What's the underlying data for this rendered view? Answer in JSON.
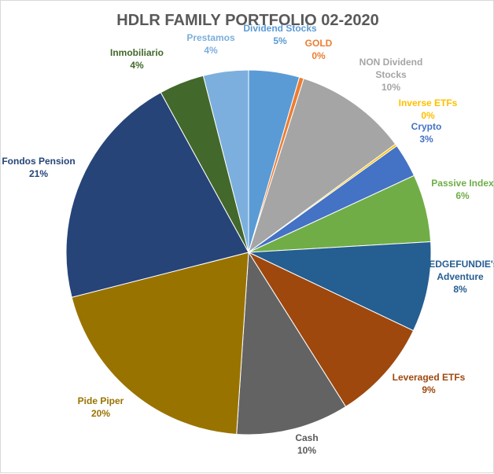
{
  "chart_data": {
    "type": "pie",
    "title": "HDLR FAMILY PORTFOLIO 02-2020",
    "slices": [
      {
        "name": "Dividend Stocks",
        "value": 4.5,
        "label_lines": [
          "Dividend Stocks",
          "5%"
        ],
        "color": "#5b9bd5",
        "label_color": "#5b9bd5"
      },
      {
        "name": "GOLD",
        "value": 0.4,
        "label_lines": [
          "GOLD",
          "0%"
        ],
        "color": "#ed7d31",
        "label_color": "#ed7d31"
      },
      {
        "name": "NON Dividend Stocks",
        "value": 10.0,
        "label_lines": [
          "NON Dividend",
          "Stocks",
          "10%"
        ],
        "color": "#a5a5a5",
        "label_color": "#a5a5a5"
      },
      {
        "name": "Inverse ETFs",
        "value": 0.2,
        "label_lines": [
          "Inverse ETFs",
          "0%"
        ],
        "color": "#ffc000",
        "label_color": "#ffc000"
      },
      {
        "name": "Crypto",
        "value": 3.0,
        "label_lines": [
          "Crypto",
          "3%"
        ],
        "color": "#4472c4",
        "label_color": "#4472c4"
      },
      {
        "name": "Passive Index",
        "value": 6.0,
        "label_lines": [
          "Passive Index",
          "6%"
        ],
        "color": "#70ad47",
        "label_color": "#70ad47"
      },
      {
        "name": "HEDGEFUNDIE's Adventure",
        "value": 8.0,
        "label_lines": [
          "HEDGEFUNDIE's",
          "Adventure",
          "8%"
        ],
        "color": "#255e91",
        "label_color": "#255e91"
      },
      {
        "name": "Leveraged ETFs",
        "value": 9.0,
        "label_lines": [
          "Leveraged ETFs",
          "9%"
        ],
        "color": "#9e480e",
        "label_color": "#9e480e"
      },
      {
        "name": "Cash",
        "value": 10.0,
        "label_lines": [
          "Cash",
          "10%"
        ],
        "color": "#636363",
        "label_color": "#595959"
      },
      {
        "name": "Pide Piper",
        "value": 20.0,
        "label_lines": [
          "Pide Piper",
          "20%"
        ],
        "color": "#997300",
        "label_color": "#997300"
      },
      {
        "name": "Fondos Pension",
        "value": 21.0,
        "label_lines": [
          "Fondos Pension",
          "21%"
        ],
        "color": "#264478",
        "label_color": "#264478"
      },
      {
        "name": "Inmobiliario",
        "value": 4.0,
        "label_lines": [
          "Inmobiliario",
          "4%"
        ],
        "color": "#43682b",
        "label_color": "#43682b"
      },
      {
        "name": "Prestamos",
        "value": 4.0,
        "label_lines": [
          "Prestamos",
          "4%"
        ],
        "color": "#7cafdd",
        "label_color": "#7cafdd"
      }
    ]
  }
}
